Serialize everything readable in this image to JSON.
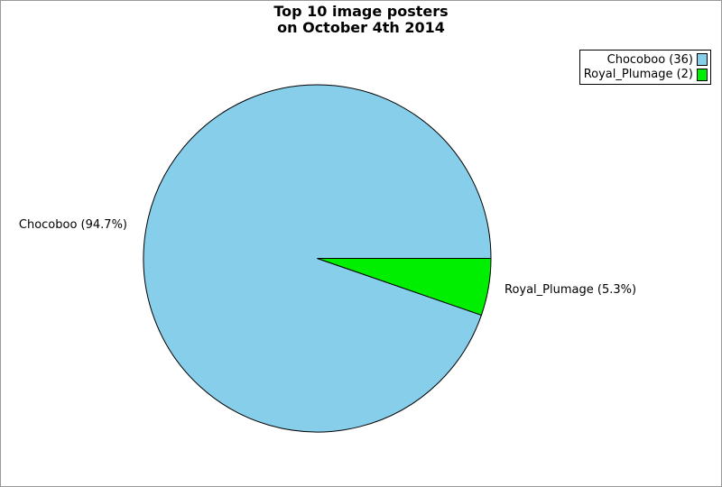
{
  "title": {
    "line1": "Top 10 image posters",
    "line2": "on October 4th 2014"
  },
  "legend": {
    "items": [
      {
        "label": "Chocoboo (36)",
        "color": "#87CEEB"
      },
      {
        "label": "Royal_Plumage (2)",
        "color": "#00EE00"
      }
    ]
  },
  "chart_data": {
    "type": "pie",
    "title": "Top 10 image posters on October 4th 2014",
    "slices": [
      {
        "name": "Chocoboo",
        "value": 36,
        "percent": 94.7,
        "label": "Chocoboo (94.7%)",
        "color": "#87CEEB"
      },
      {
        "name": "Royal_Plumage",
        "value": 2,
        "percent": 5.3,
        "label": "Royal_Plumage (5.3%)",
        "color": "#00EE00"
      }
    ],
    "total": 38,
    "start_angle_deg": 0,
    "direction": "counterclockwise",
    "legend_position": "top-right",
    "stroke_color": "#000000",
    "background": "#FFFFFF"
  }
}
